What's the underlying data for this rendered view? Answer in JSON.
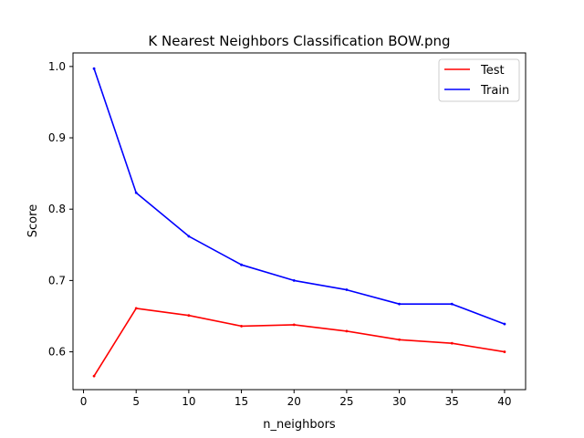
{
  "chart_data": {
    "type": "line",
    "title": "K Nearest Neighbors Classification BOW.png",
    "xlabel": "n_neighbors",
    "ylabel": "Score",
    "x": [
      1,
      5,
      10,
      15,
      20,
      25,
      30,
      35,
      40
    ],
    "xlim": [
      -1.0,
      42.0
    ],
    "ylim": [
      0.547,
      1.019
    ],
    "xticks": [
      0,
      5,
      10,
      15,
      20,
      25,
      30,
      35,
      40
    ],
    "yticks": [
      0.6,
      0.7,
      0.8,
      0.9,
      1.0
    ],
    "ytick_labels": [
      "0.6",
      "0.7",
      "0.8",
      "0.9",
      "1.0"
    ],
    "grid": false,
    "legend_position": "top-right",
    "series": [
      {
        "name": "Test",
        "color": "#ff0000",
        "values": [
          0.566,
          0.661,
          0.651,
          0.636,
          0.638,
          0.629,
          0.617,
          0.612,
          0.6
        ]
      },
      {
        "name": "Train",
        "color": "#0000ff",
        "values": [
          0.997,
          0.823,
          0.762,
          0.722,
          0.7,
          0.687,
          0.667,
          0.667,
          0.639
        ]
      }
    ]
  }
}
